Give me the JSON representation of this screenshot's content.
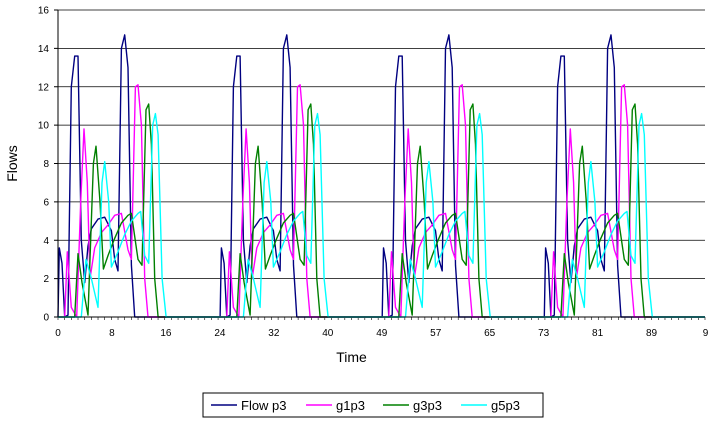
{
  "chart_data": {
    "type": "line",
    "title": "",
    "xlabel": "Time",
    "ylabel": "Flows",
    "xlim": [
      0,
      97
    ],
    "ylim": [
      0,
      16
    ],
    "y_ticks": [
      0,
      2,
      4,
      6,
      8,
      10,
      12,
      14,
      16
    ],
    "x_tick_labels": [
      "0",
      "8",
      "16",
      "24",
      "32",
      "40",
      "49",
      "57",
      "65",
      "73",
      "81",
      "89",
      "9"
    ],
    "grid": "horizontal",
    "legend_position": "bottom",
    "series": [
      {
        "name": "Flow  p3",
        "color": "#000080",
        "points": [
          [
            0,
            0
          ],
          [
            0.2,
            3.6
          ],
          [
            0.6,
            2.8
          ],
          [
            1,
            0
          ],
          [
            1.5,
            0.1
          ],
          [
            2,
            12
          ],
          [
            2.5,
            13.6
          ],
          [
            3,
            13.6
          ],
          [
            3.5,
            4
          ],
          [
            4,
            1.8
          ],
          [
            4.5,
            3.7
          ],
          [
            5,
            4.6
          ],
          [
            6,
            5.1
          ],
          [
            7,
            5.2
          ],
          [
            8,
            4.5
          ],
          [
            8.5,
            3
          ],
          [
            9,
            2.4
          ],
          [
            9.5,
            14
          ],
          [
            10,
            14.7
          ],
          [
            10.5,
            13
          ],
          [
            11,
            2.7
          ],
          [
            11.5,
            0
          ],
          [
            97,
            0
          ]
        ]
      },
      {
        "name": "g1p3",
        "color": "#FF00FF",
        "points": [
          [
            0,
            0
          ],
          [
            1,
            0
          ],
          [
            1.4,
            3.4
          ],
          [
            2,
            0.5
          ],
          [
            2.8,
            0
          ],
          [
            3.4,
            6
          ],
          [
            3.9,
            9.8
          ],
          [
            4.4,
            7
          ],
          [
            4.8,
            2
          ],
          [
            5.5,
            3.6
          ],
          [
            6.5,
            4.4
          ],
          [
            7.5,
            4.8
          ],
          [
            8.5,
            5.3
          ],
          [
            9.5,
            5.4
          ],
          [
            10.5,
            3.5
          ],
          [
            11,
            3
          ],
          [
            11.6,
            12
          ],
          [
            12,
            12.1
          ],
          [
            12.5,
            10
          ],
          [
            13,
            2
          ],
          [
            13.5,
            0
          ],
          [
            97,
            0
          ]
        ]
      },
      {
        "name": "g3p3",
        "color": "#008000",
        "points": [
          [
            0,
            0
          ],
          [
            2.5,
            0
          ],
          [
            3,
            3.3
          ],
          [
            3.6,
            1.8
          ],
          [
            4.5,
            0.1
          ],
          [
            5.3,
            8
          ],
          [
            5.7,
            8.9
          ],
          [
            6.3,
            6
          ],
          [
            6.8,
            2.5
          ],
          [
            7.5,
            3.2
          ],
          [
            8.5,
            4.1
          ],
          [
            9.5,
            4.9
          ],
          [
            10.5,
            5.3
          ],
          [
            11,
            5.4
          ],
          [
            12,
            3
          ],
          [
            12.6,
            2.7
          ],
          [
            13.2,
            10.8
          ],
          [
            13.6,
            11.1
          ],
          [
            14,
            9
          ],
          [
            14.5,
            2
          ],
          [
            15,
            0
          ],
          [
            97,
            0
          ]
        ]
      },
      {
        "name": "g5p3",
        "color": "#00FFFF",
        "points": [
          [
            0,
            0
          ],
          [
            3.5,
            0
          ],
          [
            4.2,
            3
          ],
          [
            5,
            2
          ],
          [
            6,
            0.5
          ],
          [
            6.6,
            7
          ],
          [
            7,
            8.1
          ],
          [
            7.6,
            6
          ],
          [
            8,
            2.6
          ],
          [
            9,
            3.4
          ],
          [
            10,
            4.3
          ],
          [
            11,
            5
          ],
          [
            12,
            5.4
          ],
          [
            12.4,
            5.5
          ],
          [
            13,
            3.2
          ],
          [
            13.6,
            2.8
          ],
          [
            14.2,
            10
          ],
          [
            14.6,
            10.6
          ],
          [
            15,
            9.5
          ],
          [
            15.6,
            2
          ],
          [
            16.2,
            0
          ],
          [
            97,
            0
          ]
        ]
      }
    ],
    "period": 24.3,
    "cycles": 4
  }
}
